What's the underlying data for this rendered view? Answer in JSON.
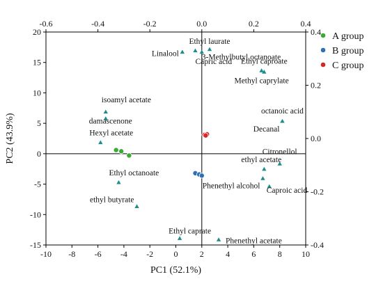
{
  "chart_data": {
    "type": "scatter",
    "xlabel": "PC1 (52.1%)",
    "ylabel": "PC2 (43.9%)",
    "xlim": [
      -10,
      10
    ],
    "ylim": [
      -15,
      20
    ],
    "x_ticks": [
      "-10",
      "-8",
      "-6",
      "-4",
      "-2",
      "0",
      "2",
      "4",
      "6",
      "8",
      "10"
    ],
    "y_ticks": [
      "-15",
      "-10",
      "-5",
      "0",
      "5",
      "10",
      "15",
      "20"
    ],
    "top_xlim": [
      -0.6,
      0.4
    ],
    "top_x_ticks": [
      "-0.6",
      "-0.4",
      "-0.2",
      "0.0",
      "0.2",
      "0.4"
    ],
    "right_ylim": [
      -0.4,
      0.4
    ],
    "right_y_ticks": [
      "-0.4",
      "-0.2",
      "0.0",
      "0.2",
      "0.4"
    ],
    "legend_position": "top-right outside",
    "series": [
      {
        "name": "A group",
        "color": "#3aaa35",
        "points": [
          [
            -4.6,
            0.6
          ],
          [
            -4.2,
            0.4
          ],
          [
            -3.6,
            -0.3
          ]
        ]
      },
      {
        "name": "B group",
        "color": "#2f6fb5",
        "points": [
          [
            1.5,
            -3.2
          ],
          [
            1.8,
            -3.4
          ],
          [
            2.0,
            -3.6
          ]
        ]
      },
      {
        "name": "C group",
        "color": "#d62728",
        "points": [
          [
            2.2,
            3.1
          ],
          [
            2.4,
            3.2
          ],
          [
            2.3,
            3.0
          ]
        ]
      }
    ],
    "loadings": [
      {
        "label": "Ethyl laurate",
        "x": 0.03,
        "y": 0.335
      },
      {
        "label": "Linalool",
        "x": -0.075,
        "y": 0.325
      },
      {
        "label": "3-Methylbutyl octanoate",
        "x": 0.0,
        "y": 0.325
      },
      {
        "label": "Capric acid",
        "x": -0.025,
        "y": 0.33
      },
      {
        "label": "Ethyl caproate",
        "x": 0.24,
        "y": 0.25
      },
      {
        "label": "Methyl caprylate",
        "x": 0.23,
        "y": 0.255
      },
      {
        "label": "isoamyl acetate",
        "x": -0.37,
        "y": 0.1
      },
      {
        "label": "damascenone",
        "x": -0.37,
        "y": 0.075
      },
      {
        "label": "Hexyl acetate",
        "x": -0.39,
        "y": -0.015
      },
      {
        "label": "octanoic acid",
        "x": 0.31,
        "y": 0.065
      },
      {
        "label": "Decanal",
        "x": 0.31,
        "y": 0.065
      },
      {
        "label": "Citronellol",
        "x": 0.3,
        "y": -0.095
      },
      {
        "label": "Ethyl octanoate",
        "x": -0.32,
        "y": -0.165
      },
      {
        "label": "ethyl acetate",
        "x": 0.24,
        "y": -0.115
      },
      {
        "label": "Phenethyl alcohol",
        "x": 0.235,
        "y": -0.15
      },
      {
        "label": "Caproic acid",
        "x": 0.26,
        "y": -0.18
      },
      {
        "label": "ethyl butyrate",
        "x": -0.25,
        "y": -0.255
      },
      {
        "label": "Ethyl caprate",
        "x": -0.085,
        "y": -0.375
      },
      {
        "label": "Phenethyl acetate",
        "x": 0.065,
        "y": -0.38
      }
    ],
    "loading_color": "#1f8c8c"
  }
}
